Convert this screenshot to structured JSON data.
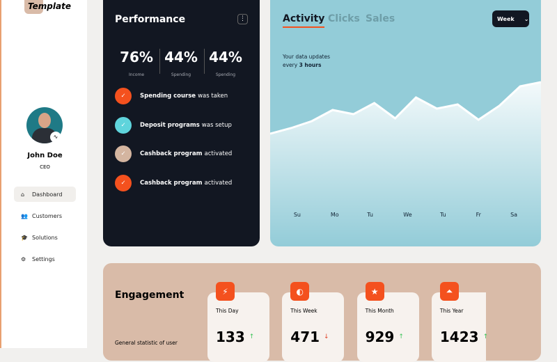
{
  "sidebar": {
    "logo": "Template",
    "user": {
      "name": "John Doe",
      "role": "CEO"
    },
    "nav": [
      {
        "label": "Dashboard",
        "active": true
      },
      {
        "label": "Customers",
        "active": false
      },
      {
        "label": "Solutions",
        "active": false
      },
      {
        "label": "Settings",
        "active": false
      }
    ]
  },
  "performance": {
    "title": "Performance",
    "stats": [
      {
        "value": "76%",
        "label": "Income"
      },
      {
        "value": "44%",
        "label": "Spending"
      },
      {
        "value": "44%",
        "label": "Spending"
      }
    ],
    "items": [
      {
        "bold": "Spending course",
        "text": "was taken",
        "color": "#f4511e"
      },
      {
        "bold": "Deposit programs",
        "text": "was setup",
        "color": "#5fd4dc"
      },
      {
        "bold": "Cashback program",
        "text": "activated",
        "color": "#d4b5a0"
      },
      {
        "bold": "Cashback program",
        "text": "activated",
        "color": "#f4511e"
      }
    ]
  },
  "activity": {
    "tabs": [
      "Activity",
      "Clicks",
      "Sales"
    ],
    "active_tab": 0,
    "period": "Week",
    "note_line1": "Your data updates",
    "note_line2": "every",
    "note_bold": "3 hours"
  },
  "chart_data": {
    "type": "area",
    "color": "#ffffff",
    "x": [
      0,
      1,
      2,
      3,
      4,
      5,
      6,
      7,
      8,
      9,
      10,
      11,
      12,
      13
    ],
    "series": [
      {
        "values": [
          48,
          52,
          57,
          65,
          62,
          70,
          59,
          74,
          66,
          69,
          58,
          68,
          82,
          85
        ]
      }
    ],
    "xlim": [
      0,
      13
    ],
    "ylim": [
      0,
      100
    ],
    "xticks": [
      {
        "value": 1.3,
        "label": "Su"
      },
      {
        "value": 3.1,
        "label": "Mo"
      },
      {
        "value": 4.8,
        "label": "Tu"
      },
      {
        "value": 6.6,
        "label": "We"
      },
      {
        "value": 8.3,
        "label": "Tu"
      },
      {
        "value": 10,
        "label": "Fr"
      },
      {
        "value": 11.7,
        "label": "Sa"
      }
    ]
  },
  "engagement": {
    "title": "Engagement",
    "subtitle": "General statistic of user",
    "cards": [
      {
        "label": "This Day",
        "value": "133",
        "trend": "up"
      },
      {
        "label": "This Week",
        "value": "471",
        "trend": "down"
      },
      {
        "label": "This Month",
        "value": "929",
        "trend": "up"
      },
      {
        "label": "This Year",
        "value": "1423",
        "trend": "up"
      }
    ]
  }
}
